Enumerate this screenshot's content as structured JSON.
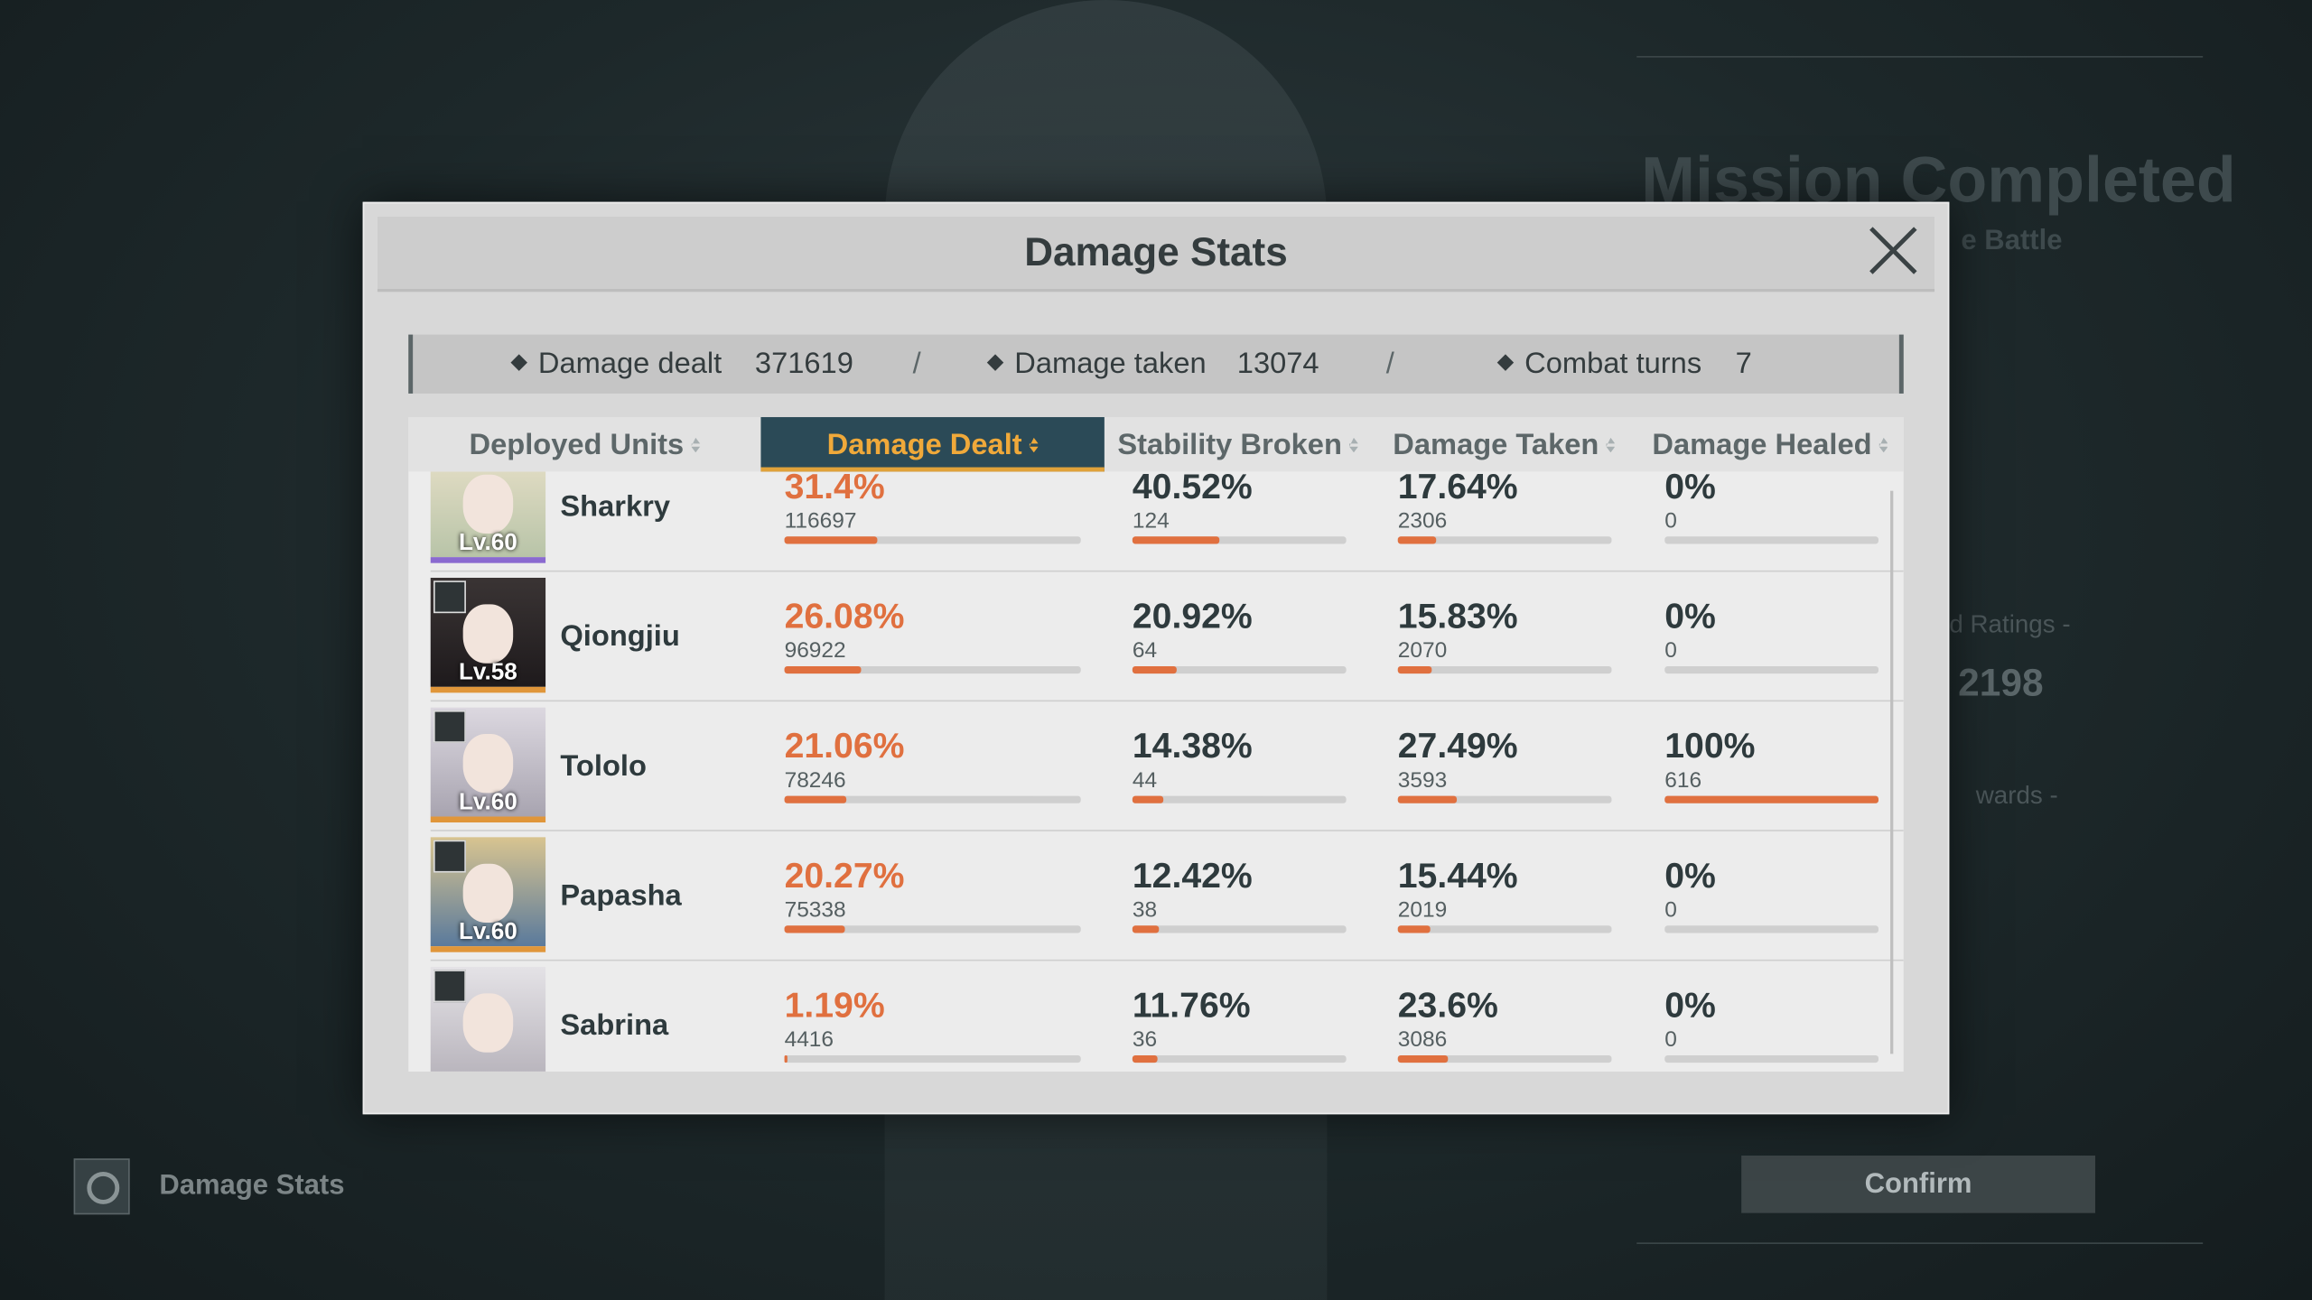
{
  "background": {
    "title": "Mission Completed",
    "subtitle": "e Battle",
    "ratings_label": "d Ratings -",
    "ratings_value": "2198",
    "rewards_label": "wards -",
    "confirm": "Confirm",
    "footer_label": "Damage Stats"
  },
  "modal": {
    "title": "Damage Stats",
    "separator": "/",
    "summary": [
      {
        "label": "Damage dealt",
        "value": 371619
      },
      {
        "label": "Damage taken",
        "value": 13074
      },
      {
        "label": "Combat turns",
        "value": 7
      }
    ],
    "columns": [
      "Deployed Units",
      "Damage Dealt",
      "Stability Broken",
      "Damage Taken",
      "Damage Healed"
    ],
    "rows": [
      {
        "name": "Sharkry",
        "level": "Lv.60",
        "dealt": {
          "pct": "31.4%",
          "count": 116697
        },
        "stability": {
          "pct": "40.52%",
          "count": 124
        },
        "taken": {
          "pct": "17.64%",
          "count": 2306
        },
        "healed": {
          "pct": "0%",
          "count": 0
        }
      },
      {
        "name": "Qiongjiu",
        "level": "Lv.58",
        "dealt": {
          "pct": "26.08%",
          "count": 96922
        },
        "stability": {
          "pct": "20.92%",
          "count": 64
        },
        "taken": {
          "pct": "15.83%",
          "count": 2070
        },
        "healed": {
          "pct": "0%",
          "count": 0
        }
      },
      {
        "name": "Tololo",
        "level": "Lv.60",
        "dealt": {
          "pct": "21.06%",
          "count": 78246
        },
        "stability": {
          "pct": "14.38%",
          "count": 44
        },
        "taken": {
          "pct": "27.49%",
          "count": 3593
        },
        "healed": {
          "pct": "100%",
          "count": 616
        }
      },
      {
        "name": "Papasha",
        "level": "Lv.60",
        "dealt": {
          "pct": "20.27%",
          "count": 75338
        },
        "stability": {
          "pct": "12.42%",
          "count": 38
        },
        "taken": {
          "pct": "15.44%",
          "count": 2019
        },
        "healed": {
          "pct": "0%",
          "count": 0
        }
      },
      {
        "name": "Sabrina",
        "dealt": {
          "pct": "1.19%",
          "count": 4416
        },
        "stability": {
          "pct": "11.76%",
          "count": 36
        },
        "taken": {
          "pct": "23.6%",
          "count": 3086
        },
        "healed": {
          "pct": "0%",
          "count": 0
        }
      }
    ]
  }
}
